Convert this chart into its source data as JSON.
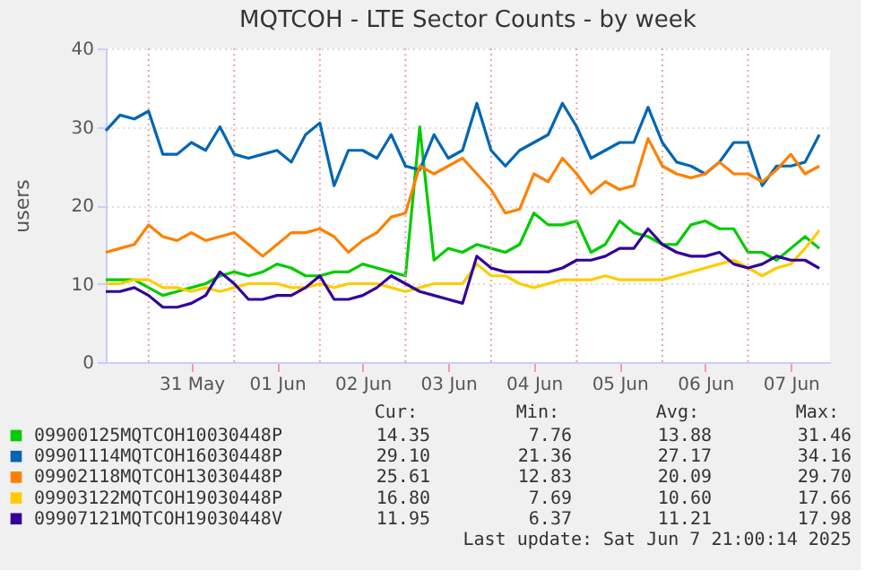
{
  "chart_data": {
    "type": "line",
    "title": "MQTCOH - LTE Sector Counts - by week",
    "ylabel": "users",
    "x": [
      "2025-05-30T12:00",
      "2025-05-30T16:00",
      "2025-05-30T20:00",
      "2025-05-31T00:00",
      "2025-05-31T04:00",
      "2025-05-31T08:00",
      "2025-05-31T12:00",
      "2025-05-31T16:00",
      "2025-05-31T20:00",
      "2025-06-01T00:00",
      "2025-06-01T04:00",
      "2025-06-01T08:00",
      "2025-06-01T12:00",
      "2025-06-01T16:00",
      "2025-06-01T20:00",
      "2025-06-02T00:00",
      "2025-06-02T04:00",
      "2025-06-02T08:00",
      "2025-06-02T12:00",
      "2025-06-02T16:00",
      "2025-06-02T20:00",
      "2025-06-03T00:00",
      "2025-06-03T04:00",
      "2025-06-03T08:00",
      "2025-06-03T12:00",
      "2025-06-03T16:00",
      "2025-06-03T20:00",
      "2025-06-04T00:00",
      "2025-06-04T04:00",
      "2025-06-04T08:00",
      "2025-06-04T12:00",
      "2025-06-04T16:00",
      "2025-06-04T20:00",
      "2025-06-05T00:00",
      "2025-06-05T04:00",
      "2025-06-05T08:00",
      "2025-06-05T12:00",
      "2025-06-05T16:00",
      "2025-06-05T20:00",
      "2025-06-06T00:00",
      "2025-06-06T04:00",
      "2025-06-06T08:00",
      "2025-06-06T12:00",
      "2025-06-06T16:00",
      "2025-06-06T20:00",
      "2025-06-07T00:00",
      "2025-06-07T04:00",
      "2025-06-07T08:00",
      "2025-06-07T12:00",
      "2025-06-07T16:00",
      "2025-06-07T20:00"
    ],
    "series": [
      {
        "name": "09900125MQTCOH10030448P",
        "color": "#00cc00",
        "values": [
          10.5,
          10.5,
          10.5,
          9.5,
          8.5,
          9,
          9.5,
          10,
          11,
          11.5,
          11,
          11.5,
          12.5,
          12,
          11,
          11,
          11.5,
          11.5,
          12.5,
          12,
          11.5,
          11,
          30,
          13,
          14.5,
          14,
          15,
          14.5,
          14,
          15,
          19,
          17.5,
          17.5,
          18,
          14,
          15,
          18,
          16.5,
          16,
          15,
          15,
          17.5,
          18,
          17,
          17,
          14,
          14,
          13,
          14.5,
          16,
          14.5
        ]
      },
      {
        "name": "09901114MQTCOH16030448P",
        "color": "#0066b3",
        "values": [
          29.5,
          31.5,
          31,
          32,
          26.5,
          26.5,
          28,
          27,
          30,
          26.5,
          26,
          26.5,
          27,
          25.5,
          29,
          30.5,
          22.5,
          27,
          27,
          26,
          29,
          25,
          24.5,
          29,
          26,
          27,
          33,
          27,
          25,
          27,
          28,
          29,
          33,
          30,
          26,
          27,
          28,
          28,
          32.5,
          28,
          25.5,
          25,
          24,
          25.5,
          28,
          28,
          22.5,
          25,
          25,
          25.5,
          29
        ]
      },
      {
        "name": "09902118MQTCOH13030448P",
        "color": "#ff8000",
        "values": [
          14,
          14.5,
          15,
          17.5,
          16,
          15.5,
          16.5,
          15.5,
          16,
          16.5,
          15,
          13.5,
          15,
          16.5,
          16.5,
          17,
          16,
          14,
          15.5,
          16.5,
          18.5,
          19,
          25,
          24,
          25,
          26,
          24,
          22,
          19,
          19.5,
          24,
          23,
          26,
          24,
          21.5,
          23,
          22,
          22.5,
          28.5,
          25,
          24,
          23.5,
          24,
          25.5,
          24,
          24,
          23,
          24.5,
          26.5,
          24,
          25
        ]
      },
      {
        "name": "09903122MQTCOH19030448P",
        "color": "#ffcc00",
        "values": [
          10,
          10,
          10.5,
          10.5,
          9.5,
          9.5,
          9,
          9.5,
          9,
          9.5,
          10,
          10,
          10,
          9.5,
          9.5,
          10,
          9.5,
          10,
          10,
          10,
          9.5,
          9,
          9.5,
          10,
          10,
          10,
          12.5,
          11,
          11,
          10,
          9.5,
          10,
          10.5,
          10.5,
          10.5,
          11,
          10.5,
          10.5,
          10.5,
          10.5,
          11,
          11.5,
          12,
          12.5,
          13,
          12,
          11,
          12,
          12.5,
          14.5,
          16.8
        ]
      },
      {
        "name": "09907121MQTCOH19030448V",
        "color": "#330099",
        "values": [
          9,
          9,
          9.5,
          8.5,
          7,
          7,
          7.5,
          8.5,
          11.5,
          10,
          8,
          8,
          8.5,
          8.5,
          9.5,
          11,
          8,
          8,
          8.5,
          9.5,
          11,
          10,
          9,
          8.5,
          8,
          7.5,
          13.5,
          12,
          11.5,
          11.5,
          11.5,
          11.5,
          12,
          13,
          13,
          13.5,
          14.5,
          14.5,
          17,
          15,
          14,
          13.5,
          13.5,
          14,
          12.5,
          12,
          12.5,
          13.5,
          13,
          13,
          11.95
        ]
      }
    ],
    "xlim": [
      "2025-05-30T12:00",
      "2025-06-07T23:00"
    ],
    "xticks": [
      {
        "value": "2025-05-31T00:00",
        "label": null
      },
      {
        "value": "2025-05-31T12:00",
        "label": "31 May"
      },
      {
        "value": "2025-06-01T00:00",
        "label": null
      },
      {
        "value": "2025-06-01T12:00",
        "label": "01 Jun"
      },
      {
        "value": "2025-06-02T00:00",
        "label": null
      },
      {
        "value": "2025-06-02T12:00",
        "label": "02 Jun"
      },
      {
        "value": "2025-06-03T00:00",
        "label": null
      },
      {
        "value": "2025-06-03T12:00",
        "label": "03 Jun"
      },
      {
        "value": "2025-06-04T00:00",
        "label": null
      },
      {
        "value": "2025-06-04T12:00",
        "label": "04 Jun"
      },
      {
        "value": "2025-06-05T00:00",
        "label": null
      },
      {
        "value": "2025-06-05T12:00",
        "label": "05 Jun"
      },
      {
        "value": "2025-06-06T00:00",
        "label": null
      },
      {
        "value": "2025-06-06T12:00",
        "label": "06 Jun"
      },
      {
        "value": "2025-06-07T00:00",
        "label": null
      },
      {
        "value": "2025-06-07T12:00",
        "label": "07 Jun"
      }
    ],
    "ylim": [
      0,
      40
    ],
    "yticks": [
      0,
      10,
      20,
      30,
      40
    ],
    "grid": true,
    "legend": "bottom",
    "annotations": [
      "Cur:",
      "Min:",
      "Avg:",
      "Max:",
      "14.35",
      "7.76",
      "13.88",
      "31.46",
      "29.10",
      "21.36",
      "27.17",
      "34.16",
      "25.61",
      "12.83",
      "20.09",
      "29.70",
      "16.80",
      "7.69",
      "10.60",
      "17.66",
      "11.95",
      "6.37",
      "11.21",
      "17.98",
      "Last update: Sat Jun  7 21:00:14 2025"
    ]
  }
}
